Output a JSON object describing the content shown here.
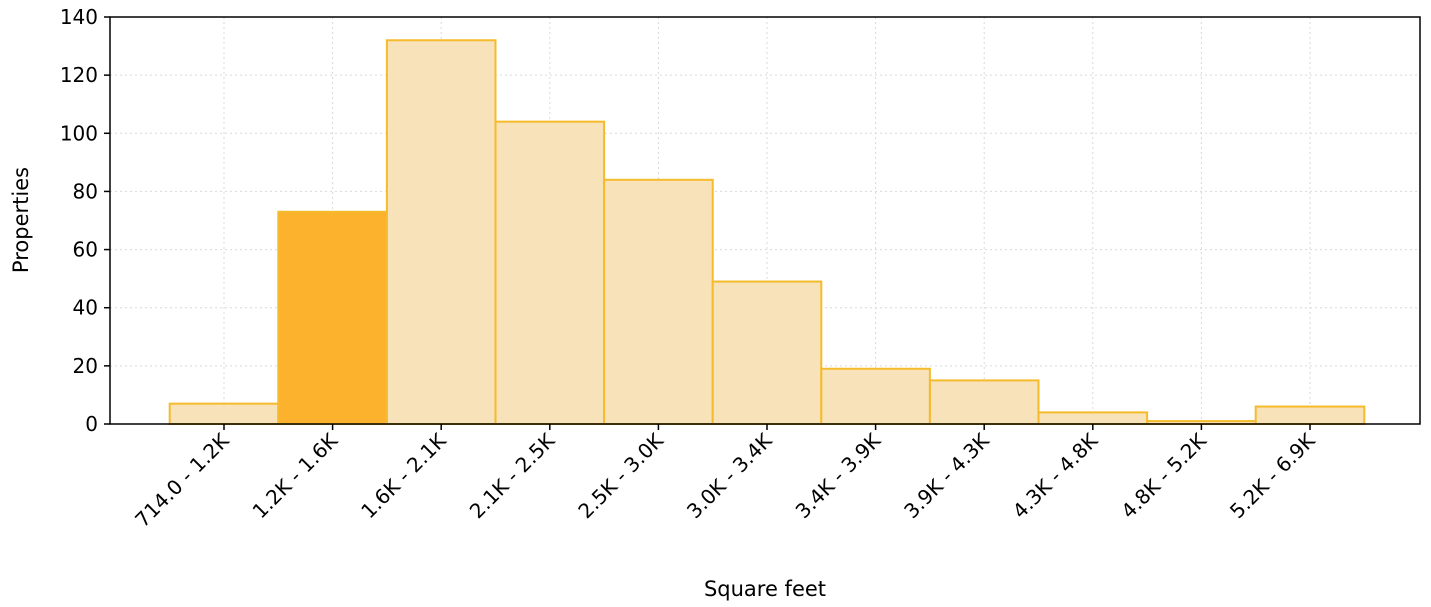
{
  "chart_data": {
    "type": "bar",
    "title": "",
    "xlabel": "Square feet",
    "ylabel": "Properties",
    "categories": [
      "714.0 - 1.2K",
      "1.2K - 1.6K",
      "1.6K - 2.1K",
      "2.1K - 2.5K",
      "2.5K - 3.0K",
      "3.0K - 3.4K",
      "3.4K - 3.9K",
      "3.9K - 4.3K",
      "4.3K - 4.8K",
      "4.8K - 5.2K",
      "5.2K - 6.9K"
    ],
    "values": [
      7,
      73,
      132,
      104,
      84,
      49,
      19,
      15,
      4,
      1,
      6
    ],
    "highlighted_index": 1,
    "ylim": [
      0,
      140
    ],
    "yticks": [
      0,
      20,
      40,
      60,
      80,
      100,
      120,
      140
    ],
    "grid": true,
    "legend": "none",
    "colors": {
      "bar_fill": "#f8e2b9",
      "bar_stroke": "#f5bb2c",
      "highlight_fill": "#fdb22e",
      "grid": "#d9d9d9",
      "axis": "#000000"
    }
  }
}
